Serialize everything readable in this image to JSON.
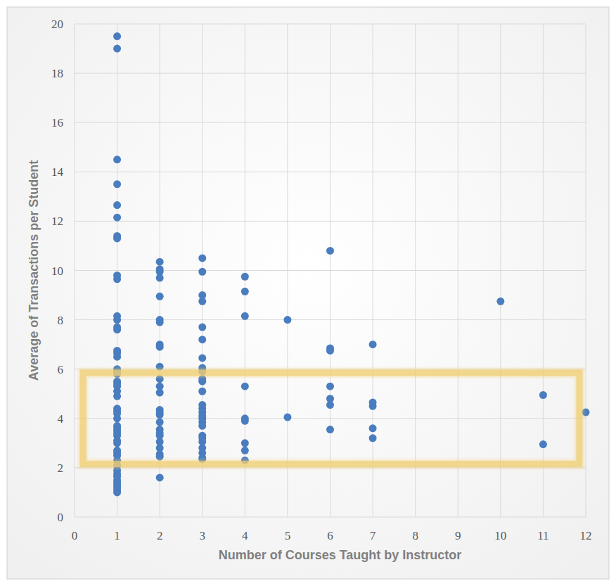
{
  "chart_data": {
    "type": "scatter",
    "x_label": "Number of Courses Taught by Instructor",
    "y_label": "Average of Transactions per Student",
    "color": "#4a7dbf",
    "marker": "circle",
    "grid": true,
    "xlim": [
      0,
      12
    ],
    "xticks": [
      0,
      1,
      2,
      3,
      4,
      5,
      6,
      7,
      8,
      9,
      10,
      11,
      12
    ],
    "ylim": [
      0,
      20
    ],
    "yticks": [
      0,
      2,
      4,
      6,
      8,
      10,
      12,
      14,
      16,
      18,
      20
    ],
    "band": {
      "x": [
        0.2,
        11.85
      ],
      "y": [
        2.15,
        5.85
      ],
      "color": "#f0cf72"
    },
    "x": [
      1,
      1,
      1,
      1,
      1,
      1,
      1,
      1,
      1,
      1,
      1,
      1,
      1,
      1,
      1,
      1,
      1,
      1,
      1,
      1,
      1,
      1,
      1,
      1,
      1,
      1,
      1,
      1,
      1,
      1,
      1,
      1,
      1,
      1,
      1,
      1,
      1,
      1,
      1,
      1,
      1,
      1,
      1,
      1,
      1,
      1,
      1,
      1,
      1,
      1,
      2,
      2,
      2,
      2,
      2,
      2,
      2,
      2,
      2,
      2,
      2,
      2,
      2,
      2,
      2,
      2,
      2,
      2,
      2,
      2,
      2,
      2,
      2,
      2,
      2,
      3,
      3,
      3,
      3,
      3,
      3,
      3,
      3,
      3,
      3,
      3,
      3,
      3,
      3,
      3,
      3,
      3,
      3,
      3,
      3,
      3,
      3,
      3,
      3,
      3,
      3,
      4,
      4,
      4,
      4,
      4,
      4,
      4,
      4,
      4,
      5,
      5,
      6,
      6,
      6,
      6,
      6,
      6,
      6,
      7,
      7,
      7,
      7,
      7,
      10,
      11,
      11,
      12
    ],
    "values": [
      19.5,
      19.0,
      14.5,
      13.5,
      12.65,
      12.15,
      11.4,
      11.3,
      9.8,
      9.65,
      8.15,
      8.0,
      7.7,
      7.6,
      6.75,
      6.65,
      6.5,
      6.0,
      5.9,
      5.8,
      5.5,
      5.4,
      5.3,
      5.1,
      4.9,
      4.4,
      4.3,
      4.2,
      4.0,
      3.7,
      3.6,
      3.5,
      3.4,
      3.3,
      3.1,
      3.0,
      2.7,
      2.6,
      2.5,
      2.3,
      2.1,
      1.9,
      1.75,
      1.65,
      1.5,
      1.4,
      1.3,
      1.2,
      1.1,
      1.0,
      10.35,
      10.05,
      9.95,
      9.7,
      8.95,
      8.0,
      7.9,
      7.0,
      6.9,
      6.1,
      5.6,
      5.3,
      5.05,
      4.35,
      4.25,
      4.15,
      3.85,
      3.55,
      3.4,
      3.3,
      3.05,
      2.8,
      2.55,
      2.45,
      1.6,
      10.5,
      9.95,
      9.0,
      8.75,
      7.7,
      7.2,
      6.45,
      6.05,
      5.9,
      5.6,
      5.5,
      5.1,
      4.55,
      4.4,
      4.25,
      4.1,
      4.0,
      3.85,
      3.7,
      3.3,
      3.2,
      3.05,
      2.8,
      2.6,
      2.4,
      2.35,
      9.75,
      9.15,
      8.15,
      5.3,
      4.0,
      3.9,
      3.0,
      2.7,
      2.3,
      8.0,
      4.05,
      10.8,
      6.85,
      6.75,
      5.3,
      4.8,
      4.55,
      3.55,
      7.0,
      4.65,
      4.5,
      3.6,
      3.2,
      8.75,
      4.95,
      2.95,
      4.25
    ]
  }
}
